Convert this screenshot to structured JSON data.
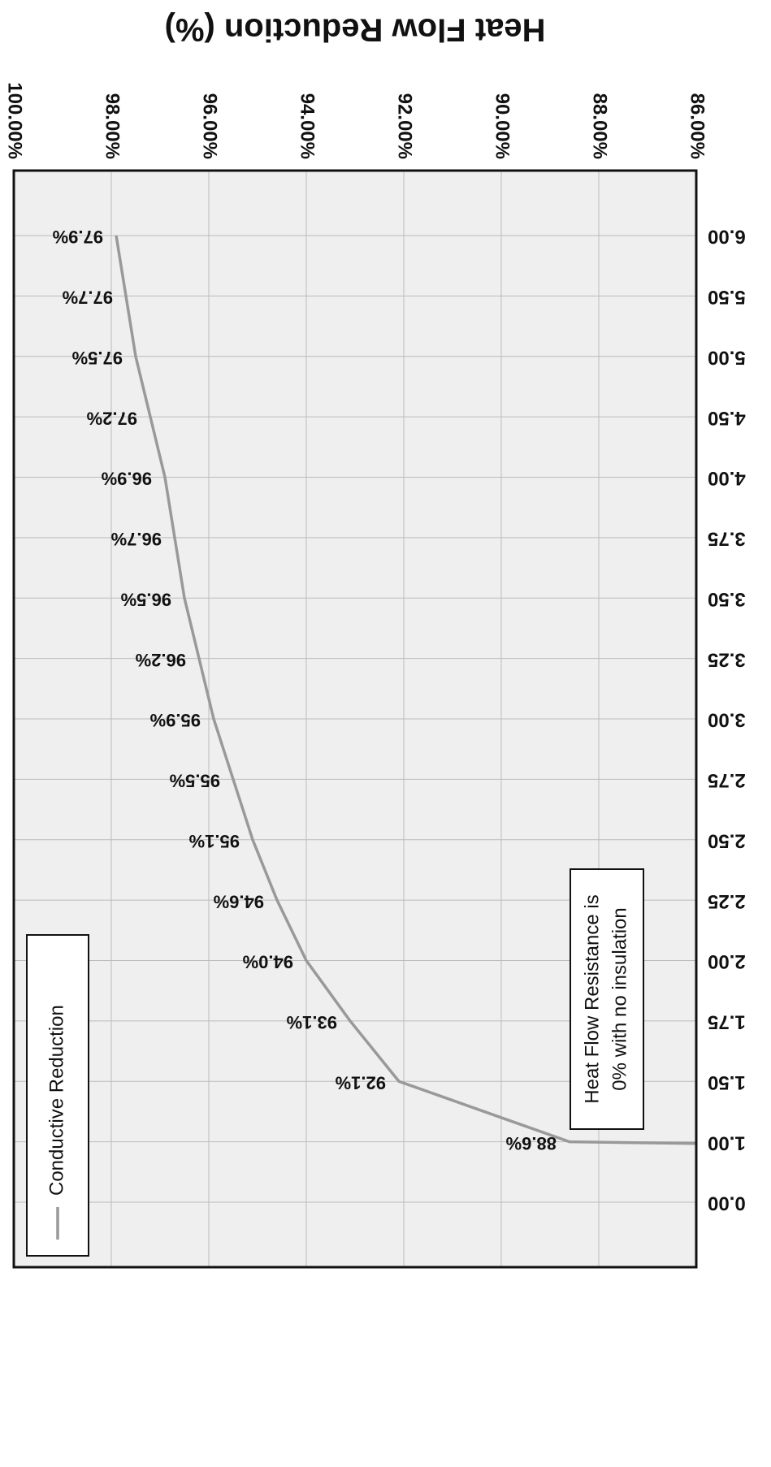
{
  "chart_data": {
    "type": "line",
    "title": "Heat Flow Reduction (%)",
    "categories": [
      "0.00",
      "1.00",
      "1.50",
      "1.75",
      "2.00",
      "2.25",
      "2.50",
      "2.75",
      "3.00",
      "3.25",
      "3.50",
      "3.75",
      "4.00",
      "4.50",
      "5.00",
      "5.50",
      "6.00"
    ],
    "series": [
      {
        "name": "Conductive Reduction",
        "color": "#999999",
        "values": [
          0,
          88.6,
          92.1,
          93.1,
          94.0,
          94.6,
          95.1,
          95.5,
          95.9,
          96.2,
          96.5,
          96.7,
          96.9,
          97.2,
          97.5,
          97.7,
          97.9
        ],
        "value_labels": [
          null,
          "88.6%",
          "92.1%",
          "93.1%",
          "94.0%",
          "94.6%",
          "95.1%",
          "95.5%",
          "95.9%",
          "96.2%",
          "96.5%",
          "96.7%",
          "96.9%",
          "97.2%",
          "97.5%",
          "97.7%",
          "97.9%"
        ]
      }
    ],
    "xlim": [
      86,
      100
    ],
    "xticks": [
      {
        "value": 86,
        "label": "86.00%"
      },
      {
        "value": 88,
        "label": "88.00%"
      },
      {
        "value": 90,
        "label": "90.00%"
      },
      {
        "value": 92,
        "label": "92.00%"
      },
      {
        "value": 94,
        "label": "94.00%"
      },
      {
        "value": 96,
        "label": "96.00%"
      },
      {
        "value": 98,
        "label": "98.00%"
      },
      {
        "value": 100,
        "label": "100.00%"
      }
    ],
    "annotation": [
      "Heat Flow Resistance is",
      "0% with no insulation"
    ],
    "grid": true,
    "legend": "top-right"
  }
}
